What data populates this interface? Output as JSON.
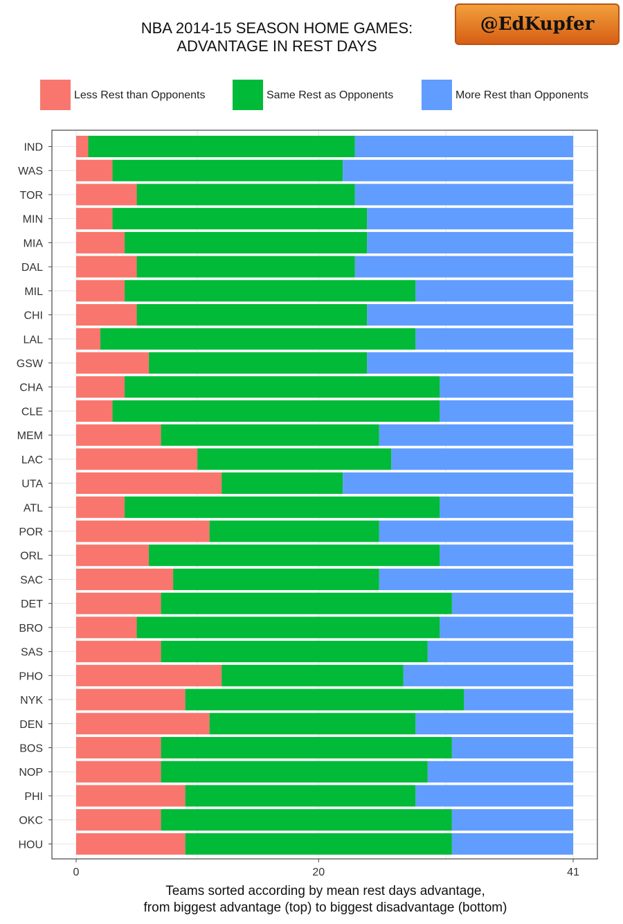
{
  "badge": "@EdKupfer",
  "chart_data": {
    "type": "bar",
    "orientation": "horizontal",
    "stacked": true,
    "title": [
      "NBA 2014-15 SEASON HOME GAMES:",
      "ADVANTAGE IN REST DAYS"
    ],
    "xlabel": [
      "Teams sorted according by mean rest days advantage,",
      "from biggest advantage (top) to biggest disadvantage (bottom)"
    ],
    "ylabel": "",
    "xlim": [
      0,
      41
    ],
    "xticks": [
      0,
      20,
      41
    ],
    "legend_position": "top",
    "grid": true,
    "categories": [
      "IND",
      "WAS",
      "TOR",
      "MIN",
      "MIA",
      "DAL",
      "MIL",
      "CHI",
      "LAL",
      "GSW",
      "CHA",
      "CLE",
      "MEM",
      "LAC",
      "UTA",
      "ATL",
      "POR",
      "ORL",
      "SAC",
      "DET",
      "BRO",
      "SAS",
      "PHO",
      "NYK",
      "DEN",
      "BOS",
      "NOP",
      "PHI",
      "OKC",
      "HOU"
    ],
    "series": [
      {
        "name": "Less Rest than Opponents",
        "color": "#F8766D",
        "values": [
          1,
          3,
          5,
          3,
          4,
          5,
          4,
          5,
          2,
          6,
          4,
          3,
          7,
          10,
          12,
          4,
          11,
          6,
          8,
          7,
          5,
          7,
          12,
          9,
          11,
          7,
          7,
          9,
          7,
          9
        ]
      },
      {
        "name": "Same Rest as Opponents",
        "color": "#00BA38",
        "values": [
          22,
          19,
          18,
          21,
          20,
          18,
          24,
          19,
          26,
          18,
          26,
          27,
          18,
          16,
          10,
          26,
          14,
          24,
          17,
          24,
          25,
          22,
          15,
          23,
          17,
          24,
          22,
          19,
          24,
          22
        ]
      },
      {
        "name": "More Rest than Opponents",
        "color": "#619CFF",
        "values": [
          18,
          19,
          18,
          17,
          17,
          18,
          13,
          17,
          13,
          17,
          11,
          11,
          16,
          15,
          19,
          11,
          16,
          11,
          16,
          10,
          11,
          12,
          14,
          9,
          13,
          10,
          12,
          13,
          10,
          10
        ]
      }
    ]
  }
}
